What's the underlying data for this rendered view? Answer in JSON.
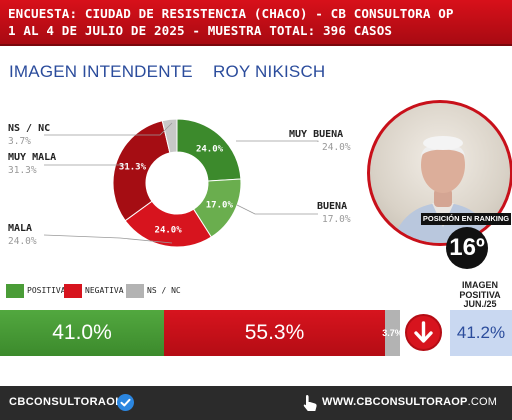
{
  "header": {
    "line1": "ENCUESTA: CIUDAD DE RESISTENCIA (CHACO) - CB CONSULTORA OP",
    "line2": "1 AL 4 DE JULIO DE 2025 - MUESTRA TOTAL: 396 CASOS"
  },
  "subtitle": {
    "left": "IMAGEN INTENDENTE",
    "right": "ROY NIKISCH"
  },
  "chart_data": [
    {
      "type": "pie",
      "title": "",
      "categories": [
        "MUY BUENA",
        "BUENA",
        "MALA",
        "MUY MALA",
        "NS / NC"
      ],
      "values": [
        24.0,
        17.0,
        24.0,
        31.3,
        3.7
      ],
      "value_labels": [
        "24.0%",
        "17.0%",
        "24.0%",
        "31.3%",
        "3.7%"
      ],
      "colors": [
        "#3c8a2c",
        "#6aae4e",
        "#d7141e",
        "#a50d13",
        "#c8c8c8"
      ],
      "legend": "callout-labels"
    },
    {
      "type": "bar",
      "orientation": "horizontal-stacked",
      "categories": [
        "POSITIVA",
        "NEGATIVA",
        "NS / NC"
      ],
      "values": [
        41.0,
        55.3,
        3.7
      ],
      "value_labels": [
        "41.0%",
        "55.3%",
        "3.7%"
      ],
      "colors": [
        "#4a9c37",
        "#d7141e",
        "#b3b3b3"
      ],
      "legend": "top-left"
    }
  ],
  "legend": {
    "positive": "POSITIVA",
    "negative": "NEGATIVA",
    "nsnc": "NS / NC"
  },
  "ranking": {
    "caption": "POSICIÓN EN RANKING",
    "value": "16º"
  },
  "previous": {
    "title_line1": "IMAGEN",
    "title_line2": "POSITIVA",
    "title_line3": "JUN./25",
    "value": "41.2%"
  },
  "trend": {
    "icon": "arrow-down-icon",
    "color": "#d7141e"
  },
  "footer": {
    "left": "CBCONSULTORAOK",
    "right_bold": "WWW.CBCONSULTORAOP",
    "right_light": ".COM"
  }
}
